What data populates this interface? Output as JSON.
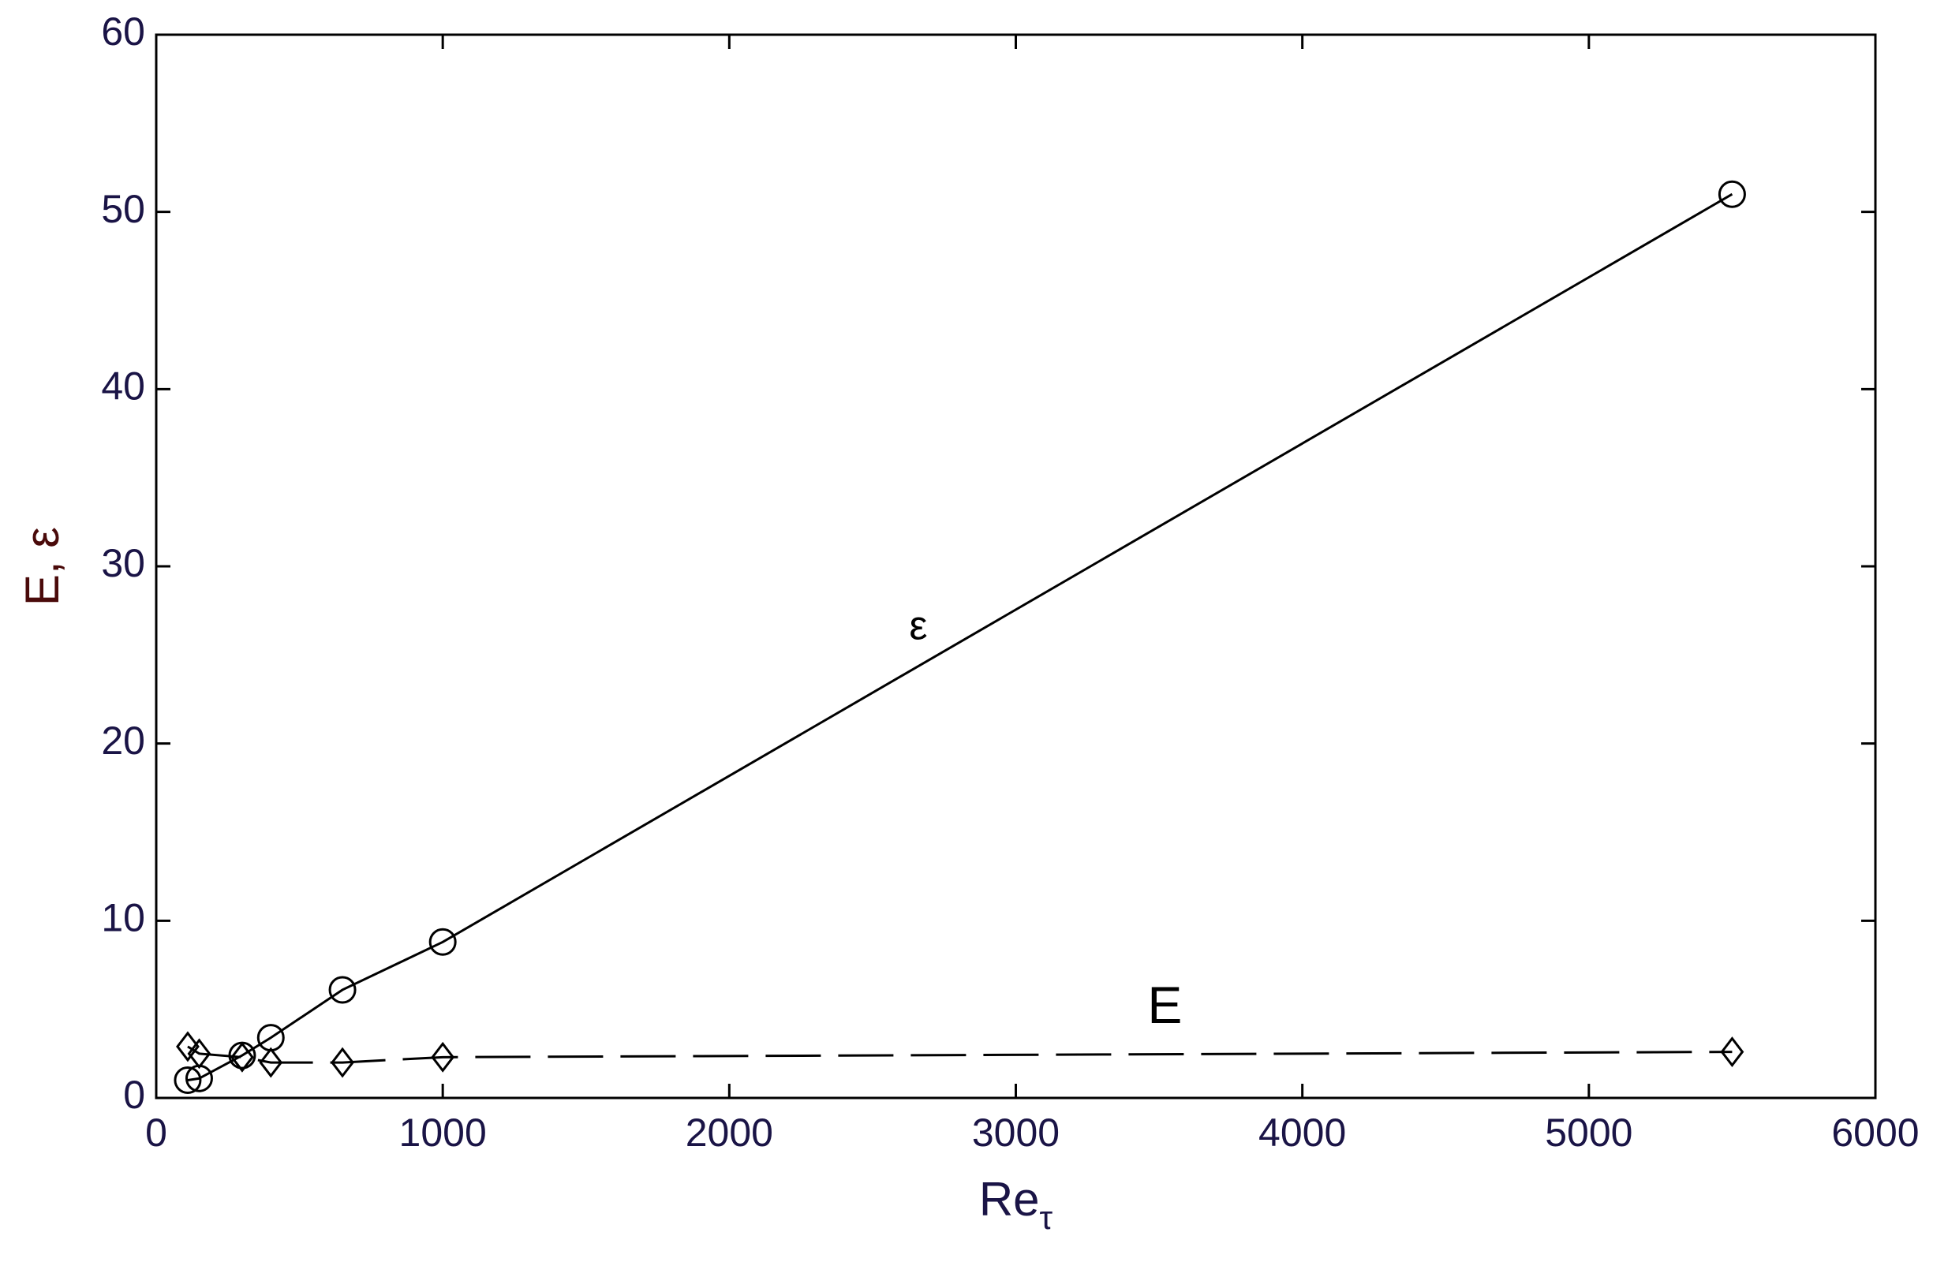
{
  "chart_data": {
    "type": "line",
    "xlabel": {
      "text": "Re",
      "subscript": "τ"
    },
    "ylabel": "E, ε",
    "x": [
      110,
      150,
      300,
      400,
      650,
      1000,
      5500
    ],
    "series": [
      {
        "name": "ε",
        "color": "#000000",
        "marker": "circle",
        "dash": "solid",
        "values": [
          1.0,
          1.1,
          2.4,
          3.4,
          6.1,
          8.8,
          51.0
        ]
      },
      {
        "name": "E",
        "color": "#000000",
        "marker": "diamond",
        "dash": "dashed",
        "values": [
          2.9,
          2.5,
          2.3,
          2.0,
          2.0,
          2.3,
          2.6
        ]
      }
    ],
    "annotations": [
      {
        "text": "ε",
        "x": 2660,
        "y": 26.5
      },
      {
        "text": "E",
        "x": 3520,
        "y": 5.0
      }
    ],
    "xlim": [
      0,
      6000
    ],
    "ylim": [
      0,
      60
    ],
    "xticks": [
      0,
      1000,
      2000,
      3000,
      4000,
      5000,
      6000
    ],
    "yticks": [
      0,
      10,
      20,
      30,
      40,
      50,
      60
    ],
    "grid": false
  }
}
